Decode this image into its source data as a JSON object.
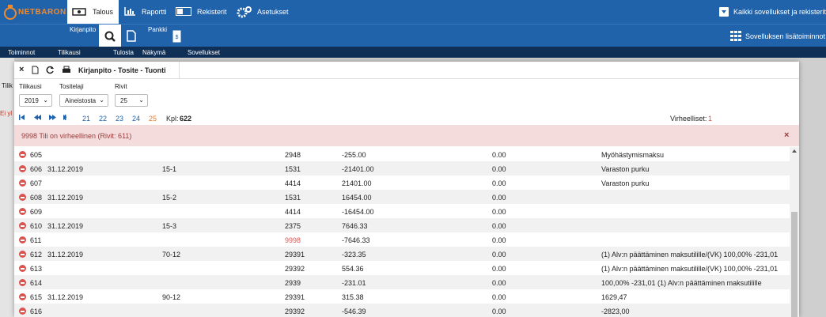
{
  "nav": {
    "logo": "NETBARON",
    "tabs": [
      "Talous",
      "Raportti",
      "Rekisterit",
      "Asetukset"
    ],
    "all_apps": "Kaikki sovellukset ja rekisterit"
  },
  "subnav": {
    "groups": [
      "Kirjanpito",
      "Pankki"
    ],
    "extra": "Sovelluksen lisätoiminnot"
  },
  "menu": [
    "Toiminnot",
    "Tilikausi",
    "Tulosta",
    "Näkymä",
    "Sovellukset"
  ],
  "background": {
    "fragments": [
      "Tilik",
      "Ei yl"
    ]
  },
  "dialog": {
    "title": "Kirjanpito - Tosite - Tuonti",
    "filters": [
      {
        "label": "Tilikausi",
        "value": "2019"
      },
      {
        "label": "Tositelaji",
        "value": "Aineistosta"
      },
      {
        "label": "Rivit",
        "value": "25"
      }
    ],
    "pager": {
      "pages": [
        21,
        22,
        23,
        24,
        25
      ],
      "count_label": "Kpl:",
      "count": 622
    },
    "errors_label": "Virheelliset:",
    "errors": 1,
    "alert": "9998 Tili on virheellinen (Rivit: 611)",
    "rows": [
      {
        "no": 605,
        "account": "2948",
        "amount": "-255.00",
        "vat": "0.00",
        "description": "Myöhästymismaksu"
      },
      {
        "no": 606,
        "date": "31.12.2019",
        "voucher": "15-1",
        "account": "1531",
        "amount": "-21401.00",
        "vat": "0.00",
        "description": "Varaston purku"
      },
      {
        "no": 607,
        "account": "4414",
        "amount": "21401.00",
        "vat": "0.00",
        "description": "Varaston purku"
      },
      {
        "no": 608,
        "date": "31.12.2019",
        "voucher": "15-2",
        "account": "1531",
        "amount": "16454.00",
        "vat": "0.00"
      },
      {
        "no": 609,
        "account": "4414",
        "amount": "-16454.00",
        "vat": "0.00"
      },
      {
        "no": 610,
        "date": "31.12.2019",
        "voucher": "15-3",
        "account": "2375",
        "amount": "7646.33",
        "vat": "0.00"
      },
      {
        "no": 611,
        "account": "9998",
        "account_color": "#d9534f",
        "amount": "-7646.33",
        "vat": "0.00"
      },
      {
        "no": 612,
        "date": "31.12.2019",
        "voucher": "70-12",
        "account": "29391",
        "amount": "-323.35",
        "vat": "0.00",
        "description": "(1) Alv:n päättäminen maksutilille/(VK) 100,00% -231,01"
      },
      {
        "no": 613,
        "account": "29392",
        "amount": "554.36",
        "vat": "0.00",
        "description": "(1) Alv:n päättäminen maksutilille/(VK) 100,00% -231,01"
      },
      {
        "no": 614,
        "account": "2939",
        "amount": "-231.01",
        "vat": "0.00",
        "description": "100,00% -231,01 (1) Alv:n päättäminen maksutilille"
      },
      {
        "no": 615,
        "date": "31.12.2019",
        "voucher": "90-12",
        "account": "29391",
        "amount": "315.38",
        "vat": "0.00",
        "description": "1629,47"
      },
      {
        "no": 616,
        "account": "29392",
        "amount": "-546.39",
        "vat": "0.00",
        "description": "-2823,00"
      }
    ]
  }
}
